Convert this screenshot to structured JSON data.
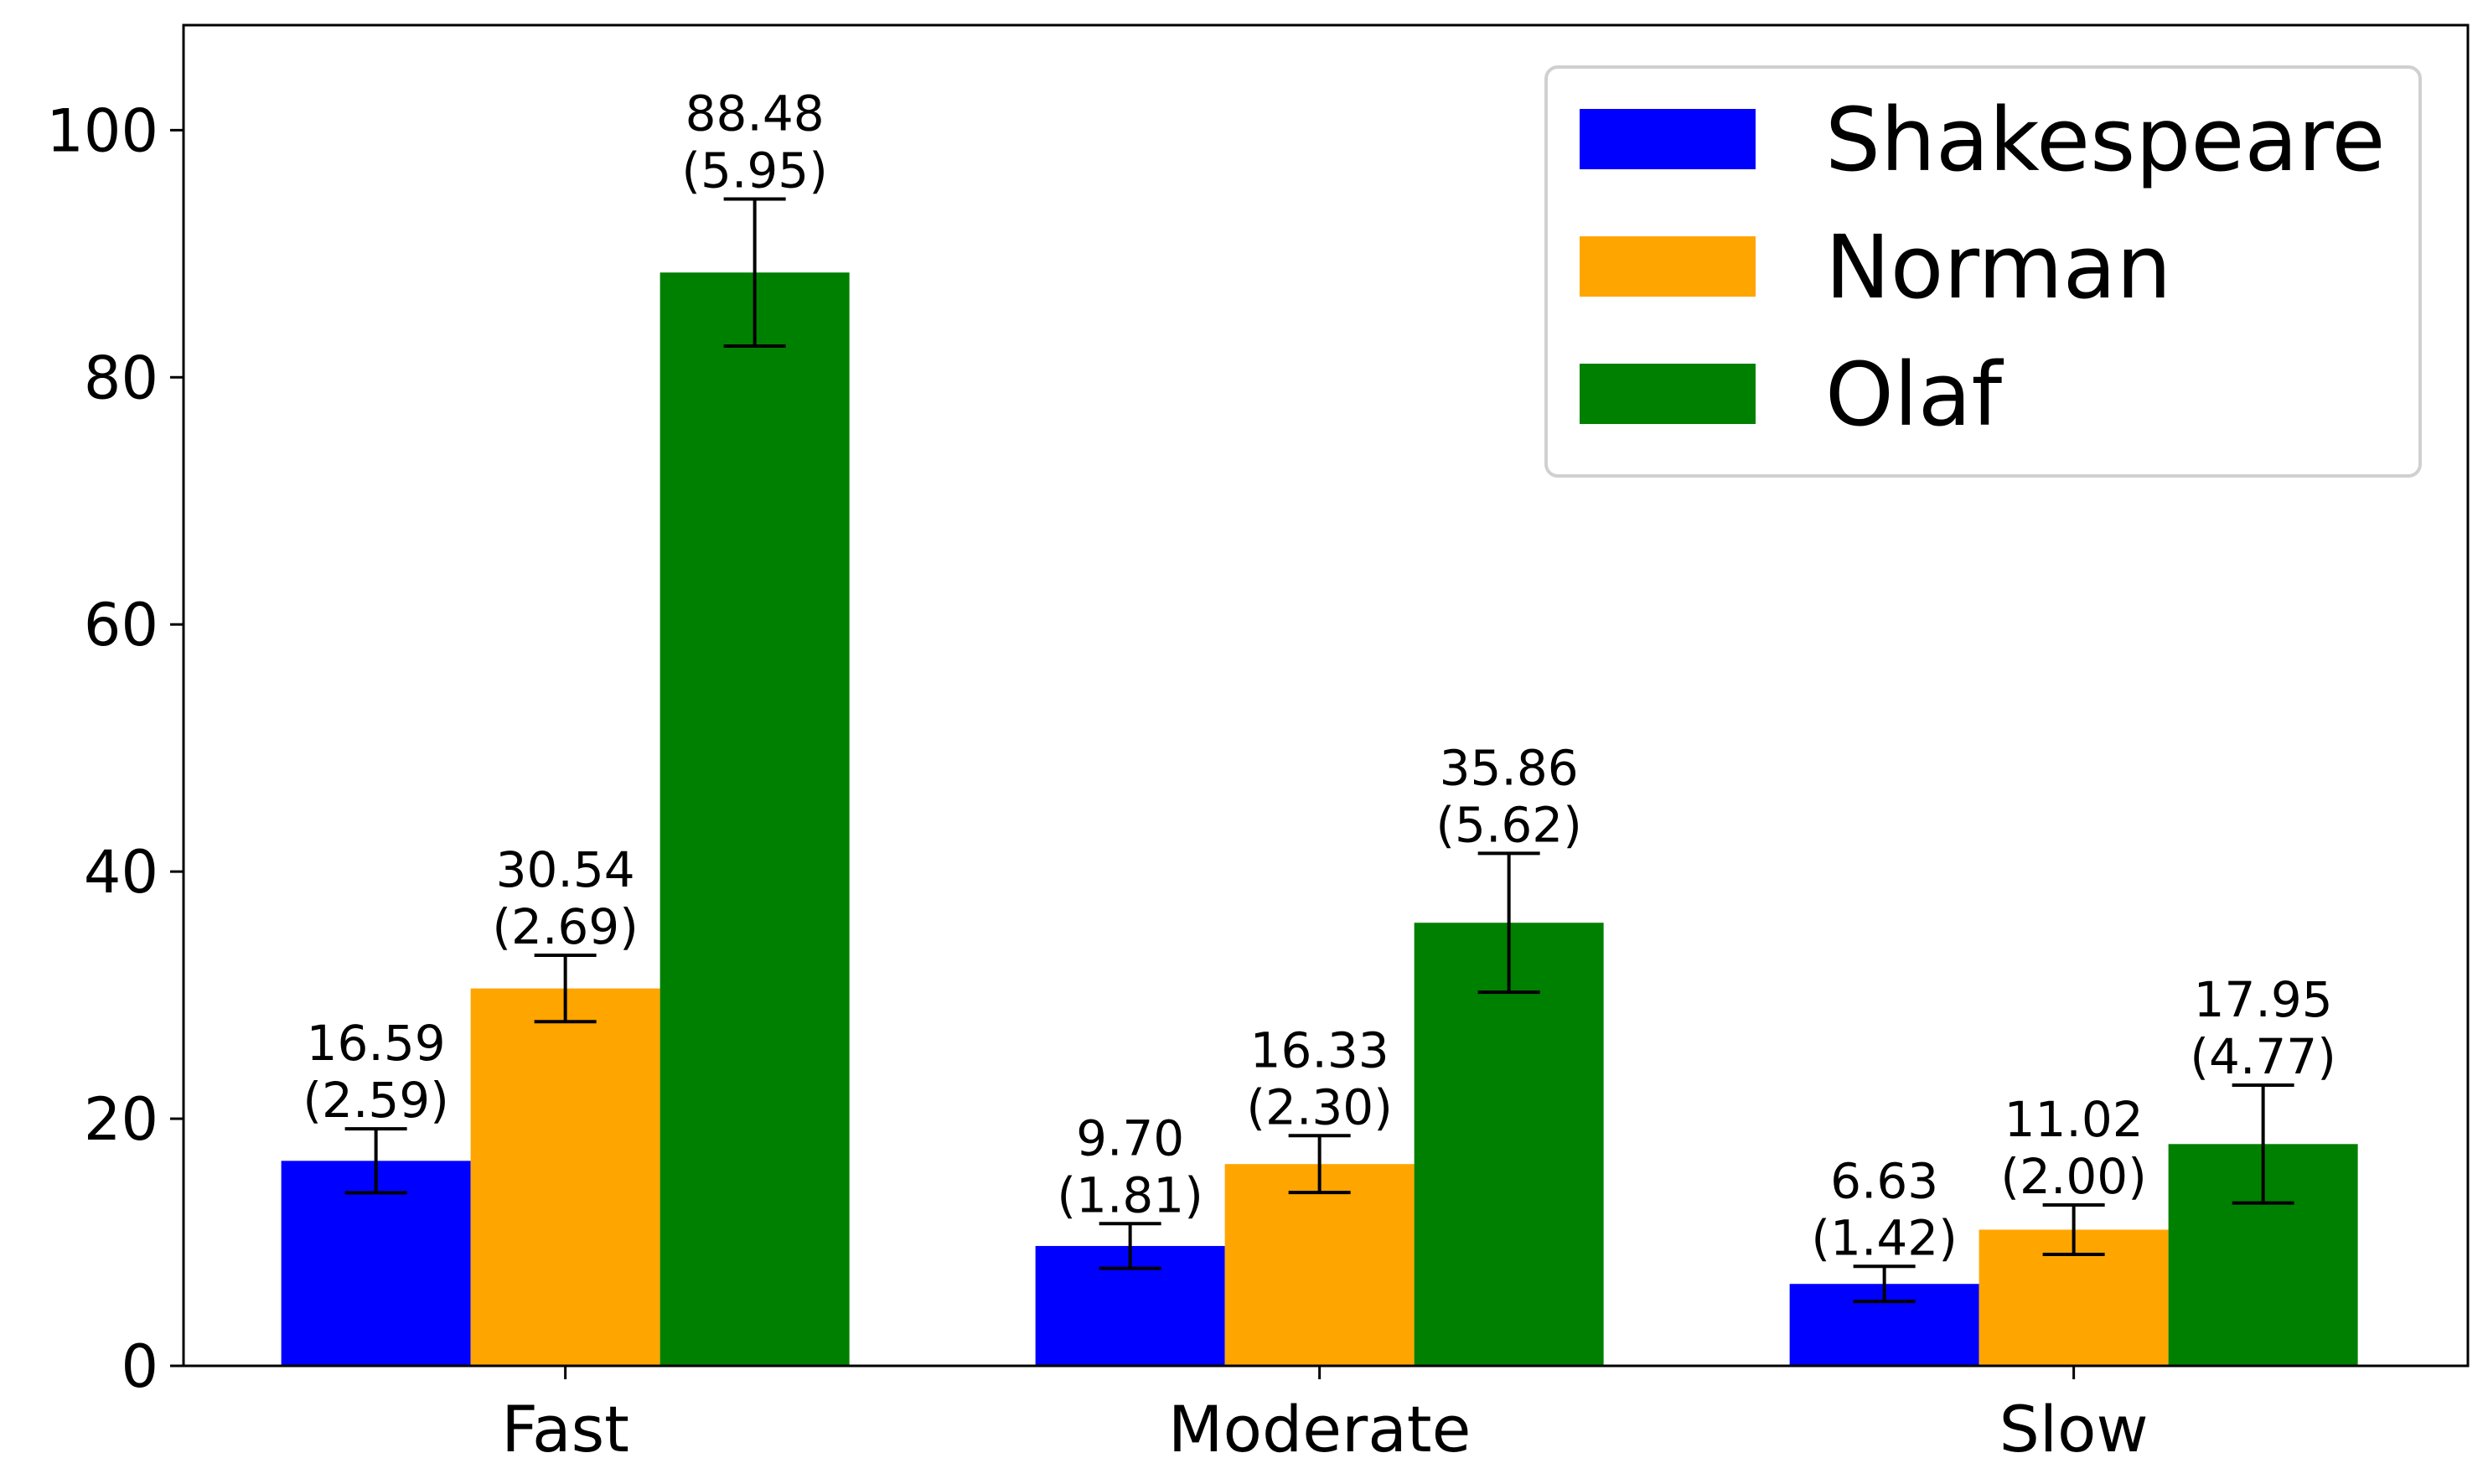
{
  "chart_data": {
    "type": "bar",
    "categories": [
      "Fast",
      "Moderate",
      "Slow"
    ],
    "series": [
      {
        "name": "Shakespeare",
        "color": "#0000ff",
        "values": [
          16.59,
          9.7,
          6.63
        ],
        "errors": [
          2.59,
          1.81,
          1.42
        ]
      },
      {
        "name": "Norman",
        "color": "#ffa500",
        "values": [
          30.54,
          16.33,
          11.02
        ],
        "errors": [
          2.69,
          2.3,
          2.0
        ]
      },
      {
        "name": "Olaf",
        "color": "#008000",
        "values": [
          88.48,
          35.86,
          17.95
        ],
        "errors": [
          5.95,
          5.62,
          4.77
        ]
      }
    ],
    "value_labels": [
      [
        "16.59",
        "30.54",
        "88.48"
      ],
      [
        "9.70",
        "16.33",
        "35.86"
      ],
      [
        "6.63",
        "11.02",
        "17.95"
      ]
    ],
    "error_labels": [
      [
        "(2.59)",
        "(2.69)",
        "(5.95)"
      ],
      [
        "(1.81)",
        "(2.30)",
        "(5.62)"
      ],
      [
        "(1.42)",
        "(2.00)",
        "(4.77)"
      ]
    ],
    "yticks": [
      "0",
      "20",
      "40",
      "60",
      "80",
      "100"
    ],
    "ylim": [
      0,
      108.5
    ],
    "title": "",
    "xlabel": "",
    "ylabel": "",
    "legend_position": "top-right",
    "grid": false
  }
}
